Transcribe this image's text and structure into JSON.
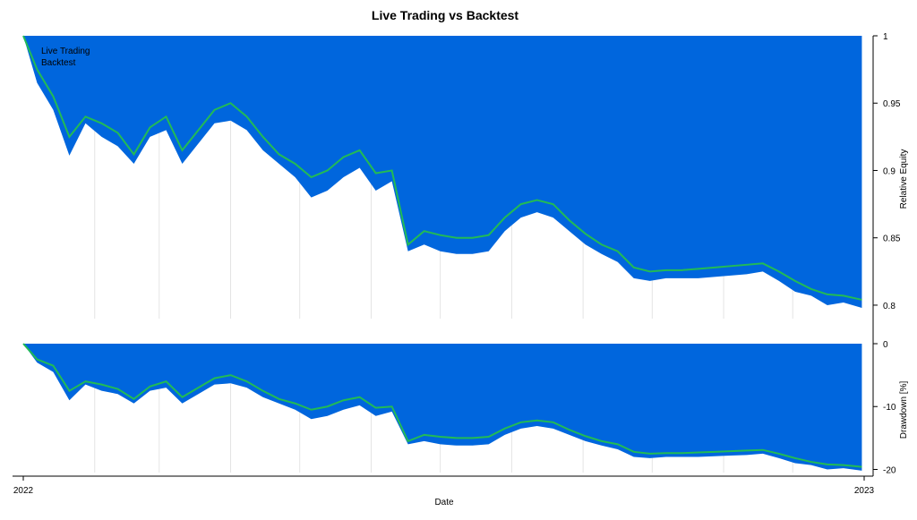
{
  "chart_data": [
    {
      "type": "area",
      "title": "Live Trading vs Backtest",
      "xlabel": "Date",
      "ylabel": "Relative Equity",
      "xlim": [
        "2022-01-01",
        "2023-01-01"
      ],
      "x_ticks": [
        "2022",
        "2023"
      ],
      "ylim": [
        0.79,
        1.0
      ],
      "y_ticks": [
        "1",
        "0.95",
        "0.9",
        "0.85",
        "0.8"
      ],
      "legend": {
        "position": "top-left"
      },
      "series": [
        {
          "name": "Live Trading",
          "color": "#0066dd",
          "style": "filled-area",
          "x": [
            "2022-01-01",
            "2022-01-07",
            "2022-01-14",
            "2022-01-21",
            "2022-01-28",
            "2022-02-04",
            "2022-02-11",
            "2022-02-18",
            "2022-02-25",
            "2022-03-04",
            "2022-03-11",
            "2022-03-18",
            "2022-03-25",
            "2022-04-01",
            "2022-04-08",
            "2022-04-15",
            "2022-04-22",
            "2022-04-29",
            "2022-05-06",
            "2022-05-13",
            "2022-05-20",
            "2022-05-27",
            "2022-06-03",
            "2022-06-10",
            "2022-06-17",
            "2022-06-24",
            "2022-07-01",
            "2022-07-08",
            "2022-07-15",
            "2022-07-22",
            "2022-07-29",
            "2022-08-05",
            "2022-08-12",
            "2022-08-19",
            "2022-08-26",
            "2022-09-02",
            "2022-09-09",
            "2022-09-16",
            "2022-09-23",
            "2022-09-30",
            "2022-10-07",
            "2022-10-14",
            "2022-10-21",
            "2022-10-28",
            "2022-11-04",
            "2022-11-11",
            "2022-11-18",
            "2022-11-25",
            "2022-12-02",
            "2022-12-09",
            "2022-12-16",
            "2022-12-23",
            "2022-12-31"
          ],
          "values": [
            1.0,
            0.965,
            0.945,
            0.911,
            0.935,
            0.925,
            0.918,
            0.905,
            0.925,
            0.93,
            0.905,
            0.92,
            0.935,
            0.937,
            0.93,
            0.915,
            0.905,
            0.895,
            0.88,
            0.885,
            0.895,
            0.902,
            0.885,
            0.892,
            0.84,
            0.845,
            0.84,
            0.838,
            0.838,
            0.84,
            0.855,
            0.865,
            0.869,
            0.865,
            0.855,
            0.845,
            0.838,
            0.832,
            0.82,
            0.818,
            0.82,
            0.82,
            0.82,
            0.821,
            0.822,
            0.823,
            0.825,
            0.818,
            0.81,
            0.807,
            0.8,
            0.802,
            0.798
          ]
        },
        {
          "name": "Backtest",
          "color": "#22bb55",
          "style": "line",
          "x": [
            "2022-01-01",
            "2022-01-07",
            "2022-01-14",
            "2022-01-21",
            "2022-01-28",
            "2022-02-04",
            "2022-02-11",
            "2022-02-18",
            "2022-02-25",
            "2022-03-04",
            "2022-03-11",
            "2022-03-18",
            "2022-03-25",
            "2022-04-01",
            "2022-04-08",
            "2022-04-15",
            "2022-04-22",
            "2022-04-29",
            "2022-05-06",
            "2022-05-13",
            "2022-05-20",
            "2022-05-27",
            "2022-06-03",
            "2022-06-10",
            "2022-06-17",
            "2022-06-24",
            "2022-07-01",
            "2022-07-08",
            "2022-07-15",
            "2022-07-22",
            "2022-07-29",
            "2022-08-05",
            "2022-08-12",
            "2022-08-19",
            "2022-08-26",
            "2022-09-02",
            "2022-09-09",
            "2022-09-16",
            "2022-09-23",
            "2022-09-30",
            "2022-10-07",
            "2022-10-14",
            "2022-10-21",
            "2022-10-28",
            "2022-11-04",
            "2022-11-11",
            "2022-11-18",
            "2022-11-25",
            "2022-12-02",
            "2022-12-09",
            "2022-12-16",
            "2022-12-23",
            "2022-12-31"
          ],
          "values": [
            1.0,
            0.975,
            0.955,
            0.925,
            0.94,
            0.935,
            0.928,
            0.912,
            0.932,
            0.94,
            0.915,
            0.93,
            0.945,
            0.95,
            0.94,
            0.925,
            0.912,
            0.905,
            0.895,
            0.9,
            0.91,
            0.915,
            0.898,
            0.9,
            0.845,
            0.855,
            0.852,
            0.85,
            0.85,
            0.852,
            0.865,
            0.875,
            0.878,
            0.875,
            0.863,
            0.853,
            0.845,
            0.84,
            0.828,
            0.825,
            0.826,
            0.826,
            0.827,
            0.828,
            0.829,
            0.83,
            0.831,
            0.825,
            0.818,
            0.812,
            0.808,
            0.807,
            0.804
          ]
        }
      ]
    },
    {
      "type": "area",
      "xlabel": "Date",
      "ylabel": "Drawdown [%]",
      "xlim": [
        "2022-01-01",
        "2023-01-01"
      ],
      "ylim": [
        -20.5,
        0
      ],
      "y_ticks": [
        "0",
        "-10",
        "-20"
      ],
      "series": [
        {
          "name": "Live Trading",
          "color": "#0066dd",
          "style": "filled-area",
          "x": [
            "2022-01-01",
            "2022-01-07",
            "2022-01-14",
            "2022-01-21",
            "2022-01-28",
            "2022-02-04",
            "2022-02-11",
            "2022-02-18",
            "2022-02-25",
            "2022-03-04",
            "2022-03-11",
            "2022-03-18",
            "2022-03-25",
            "2022-04-01",
            "2022-04-08",
            "2022-04-15",
            "2022-04-22",
            "2022-04-29",
            "2022-05-06",
            "2022-05-13",
            "2022-05-20",
            "2022-05-27",
            "2022-06-03",
            "2022-06-10",
            "2022-06-17",
            "2022-06-24",
            "2022-07-01",
            "2022-07-08",
            "2022-07-15",
            "2022-07-22",
            "2022-07-29",
            "2022-08-05",
            "2022-08-12",
            "2022-08-19",
            "2022-08-26",
            "2022-09-02",
            "2022-09-09",
            "2022-09-16",
            "2022-09-23",
            "2022-09-30",
            "2022-10-07",
            "2022-10-14",
            "2022-10-21",
            "2022-10-28",
            "2022-11-04",
            "2022-11-11",
            "2022-11-18",
            "2022-11-25",
            "2022-12-02",
            "2022-12-09",
            "2022-12-16",
            "2022-12-23",
            "2022-12-31"
          ],
          "values": [
            0,
            -3,
            -4.5,
            -9,
            -6.5,
            -7.5,
            -8,
            -9.5,
            -7.5,
            -7,
            -9.5,
            -8,
            -6.5,
            -6.3,
            -7,
            -8.5,
            -9.5,
            -10.5,
            -12,
            -11.5,
            -10.5,
            -9.8,
            -11.5,
            -10.8,
            -16,
            -15.5,
            -16,
            -16.2,
            -16.2,
            -16,
            -14.5,
            -13.5,
            -13.1,
            -13.5,
            -14.5,
            -15.5,
            -16.2,
            -16.8,
            -18,
            -18.2,
            -18,
            -18,
            -18,
            -17.9,
            -17.8,
            -17.7,
            -17.5,
            -18.2,
            -19,
            -19.3,
            -20,
            -19.8,
            -20.2
          ]
        },
        {
          "name": "Backtest",
          "color": "#22bb55",
          "style": "line",
          "x": [
            "2022-01-01",
            "2022-01-07",
            "2022-01-14",
            "2022-01-21",
            "2022-01-28",
            "2022-02-04",
            "2022-02-11",
            "2022-02-18",
            "2022-02-25",
            "2022-03-04",
            "2022-03-11",
            "2022-03-18",
            "2022-03-25",
            "2022-04-01",
            "2022-04-08",
            "2022-04-15",
            "2022-04-22",
            "2022-04-29",
            "2022-05-06",
            "2022-05-13",
            "2022-05-20",
            "2022-05-27",
            "2022-06-03",
            "2022-06-10",
            "2022-06-17",
            "2022-06-24",
            "2022-07-01",
            "2022-07-08",
            "2022-07-15",
            "2022-07-22",
            "2022-07-29",
            "2022-08-05",
            "2022-08-12",
            "2022-08-19",
            "2022-08-26",
            "2022-09-02",
            "2022-09-09",
            "2022-09-16",
            "2022-09-23",
            "2022-09-30",
            "2022-10-07",
            "2022-10-14",
            "2022-10-21",
            "2022-10-28",
            "2022-11-04",
            "2022-11-11",
            "2022-11-18",
            "2022-11-25",
            "2022-12-02",
            "2022-12-09",
            "2022-12-16",
            "2022-12-23",
            "2022-12-31"
          ],
          "values": [
            0,
            -2.5,
            -3.5,
            -7.5,
            -6,
            -6.5,
            -7.2,
            -8.8,
            -6.8,
            -6,
            -8.5,
            -7,
            -5.5,
            -5,
            -6,
            -7.5,
            -8.8,
            -9.5,
            -10.5,
            -10,
            -9,
            -8.5,
            -10.2,
            -10,
            -15.5,
            -14.5,
            -14.8,
            -15,
            -15,
            -14.8,
            -13.5,
            -12.5,
            -12.2,
            -12.5,
            -13.7,
            -14.7,
            -15.5,
            -16,
            -17.2,
            -17.5,
            -17.4,
            -17.4,
            -17.3,
            -17.2,
            -17.1,
            -17,
            -16.9,
            -17.5,
            -18.2,
            -18.8,
            -19.2,
            -19.3,
            -19.6
          ]
        }
      ]
    }
  ]
}
